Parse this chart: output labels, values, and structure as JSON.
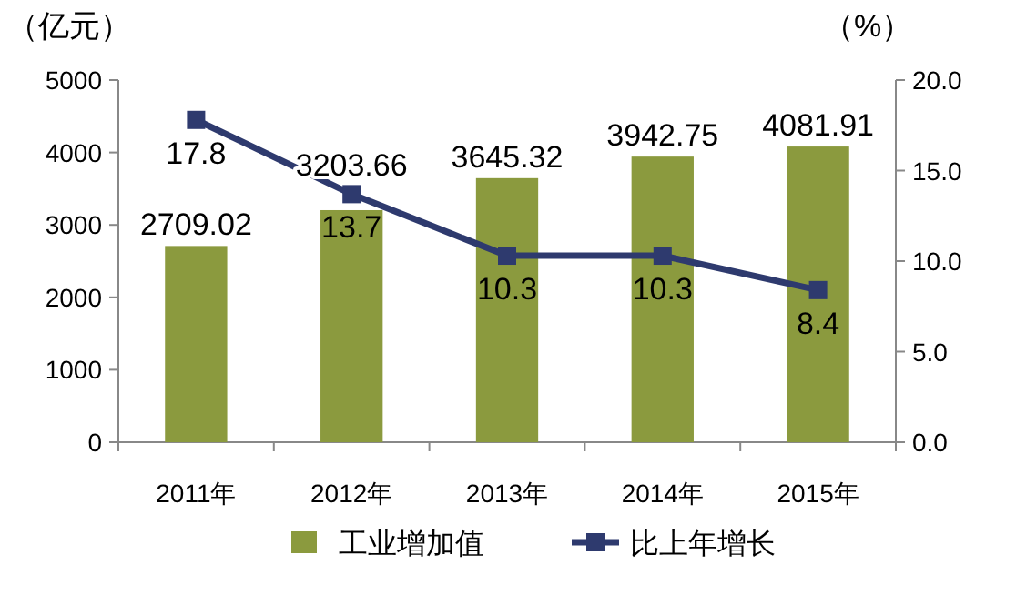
{
  "chart_data": {
    "type": "bar",
    "categories": [
      "2011年",
      "2012年",
      "2013年",
      "2014年",
      "2015年"
    ],
    "ylabel": "（亿元）",
    "y2label": "（%）",
    "series": [
      {
        "name": "工业增加值",
        "color": "#8b9a3e",
        "values": [
          2709.02,
          3203.66,
          3645.32,
          3942.75,
          4081.91
        ]
      },
      {
        "name": "比上年增长",
        "type": "line",
        "axis": "y2",
        "color": "#2e3a6e",
        "marker": "square",
        "values": [
          17.8,
          13.7,
          10.3,
          10.3,
          8.4
        ]
      }
    ],
    "ylim": [
      0,
      5000
    ],
    "yticks": [
      0,
      1000,
      2000,
      3000,
      4000,
      5000
    ],
    "y2lim": [
      0,
      20
    ],
    "y2ticks": [
      {
        "value": 0,
        "label": "0.0"
      },
      {
        "value": 5,
        "label": "5.0"
      },
      {
        "value": 10,
        "label": "10.0"
      },
      {
        "value": 15,
        "label": "15.0"
      },
      {
        "value": 20,
        "label": "20.0"
      }
    ],
    "data_labels": true,
    "legend": "bottom",
    "grid": false
  }
}
